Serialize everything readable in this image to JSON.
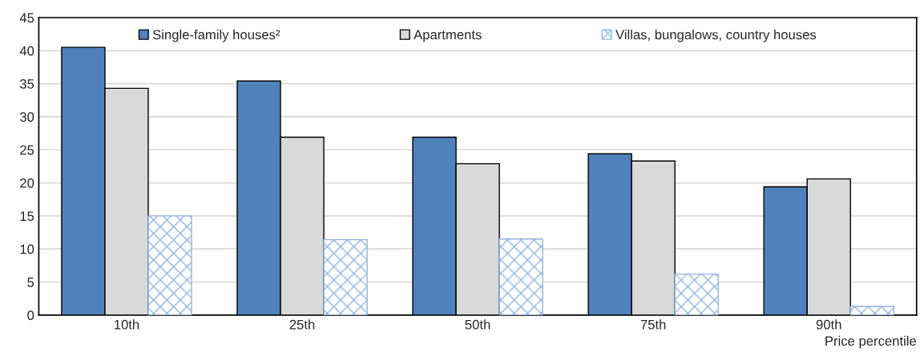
{
  "chart_data": {
    "type": "bar",
    "xlabel": "Price percentile",
    "categories": [
      "10th",
      "25th",
      "50th",
      "75th",
      "90th"
    ],
    "series": [
      {
        "name": "Single-family houses²",
        "color": "#4f81bd",
        "values": [
          40.5,
          35.4,
          26.9,
          24.4,
          19.4
        ]
      },
      {
        "name": "Apartments",
        "color": "#d9d9d9",
        "values": [
          34.3,
          26.9,
          22.9,
          23.3,
          20.6
        ]
      },
      {
        "name": "Villas, bungalows, country houses",
        "color": "#8eb4e3",
        "values": [
          15.0,
          11.4,
          11.5,
          6.2,
          1.3
        ]
      }
    ],
    "ylim": [
      0,
      45
    ],
    "yticks": [
      0,
      5,
      10,
      15,
      20,
      25,
      30,
      35,
      40,
      45
    ],
    "grid": "y",
    "legend": "top"
  }
}
